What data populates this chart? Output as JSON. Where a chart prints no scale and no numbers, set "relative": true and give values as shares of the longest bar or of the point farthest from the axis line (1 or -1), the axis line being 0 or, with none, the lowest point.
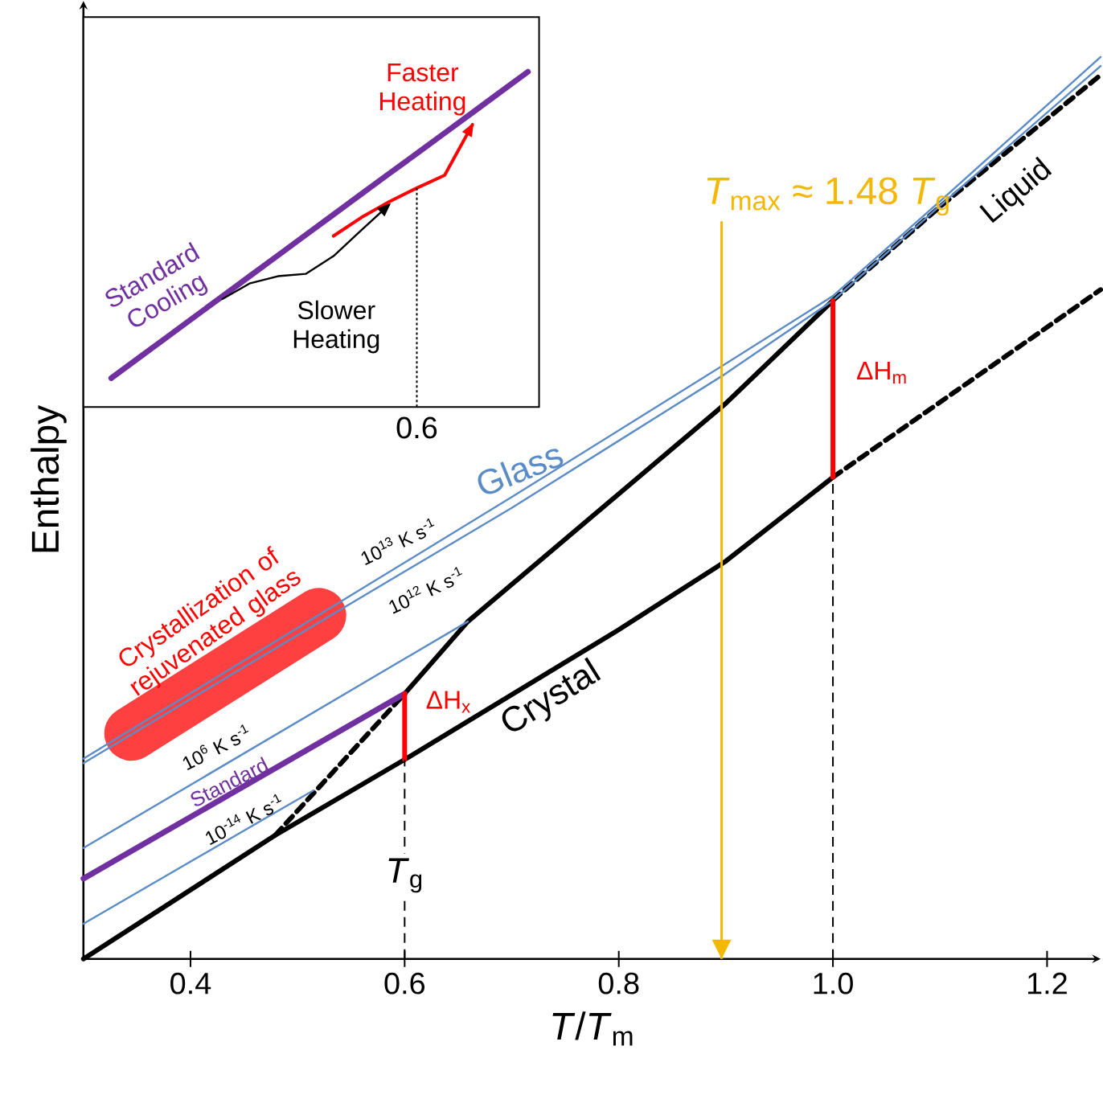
{
  "chart_data": [
    {
      "type": "line",
      "relative": true,
      "xlabel": "*T*/*T*$_{m}$",
      "ylabel": "Enthalpy",
      "xlim": [
        0.3,
        1.25
      ],
      "xticks": [
        0.4,
        0.6,
        0.8,
        {
          "value": 1.0,
          "label": "1.0"
        },
        1.2
      ],
      "tick_labels": "x",
      "series": [
        {
          "color": "#000000",
          "x": [
            0.3,
            0.479,
            0.6,
            0.8,
            0.9,
            1.0
          ],
          "values": [
            0.0,
            0.137,
            0.221,
            0.365,
            0.441,
            0.534
          ]
        },
        {
          "color": "#000000",
          "line_style": "dashed",
          "x": [
            1.0,
            1.25
          ],
          "values": [
            0.534,
            0.742
          ]
        },
        {
          "color": "#000000",
          "x": [
            0.6,
            0.659,
            0.9,
            1.0
          ],
          "values": [
            0.294,
            0.374,
            0.616,
            0.73
          ]
        },
        {
          "color": "#000000",
          "line_style": "dashed",
          "x": [
            1.0,
            1.1,
            1.25
          ],
          "values": [
            0.73,
            0.834,
            0.98
          ]
        },
        {
          "color": "#000000",
          "line_style": "dashed",
          "x": [
            0.479,
            0.6
          ],
          "values": [
            0.137,
            0.294
          ]
        },
        {
          "color": "#5b8cc8",
          "x": [
            0.3,
            0.5,
            0.7,
            0.9,
            1.0,
            1.1,
            1.25
          ],
          "values": [
            0.222,
            0.367,
            0.512,
            0.66,
            0.735,
            0.84,
            1.0
          ]
        },
        {
          "color": "#5b8cc8",
          "x": [
            0.3,
            0.5,
            0.7,
            0.9,
            1.0,
            1.1,
            1.25
          ],
          "values": [
            0.217,
            0.359,
            0.5,
            0.649,
            0.73,
            0.835,
            0.99
          ]
        },
        {
          "color": "#5b8cc8",
          "x": [
            0.3,
            0.659
          ],
          "values": [
            0.123,
            0.374
          ]
        },
        {
          "color": "#5b8cc8",
          "x": [
            0.3,
            0.515
          ],
          "values": [
            0.039,
            0.187
          ]
        },
        {
          "color": "#7030a0",
          "x": [
            0.3,
            0.6
          ],
          "values": [
            0.089,
            0.294
          ]
        },
        {
          "color": "#ff0000",
          "x": [
            0.6,
            0.6
          ],
          "values": [
            0.221,
            0.294
          ]
        },
        {
          "color": "#ff0000",
          "x": [
            1.0,
            1.0
          ],
          "values": [
            0.534,
            0.73
          ]
        }
      ],
      "ref_lines": [
        {
          "axis": "x",
          "value": 0.6,
          "label": "*T*$_{g}$",
          "line_style": "dashed"
        },
        {
          "axis": "x",
          "value": 1.0,
          "line_style": "dashed"
        },
        {
          "axis": "x",
          "value": 0.896,
          "label": "*T*$_{max}$ ≈ 1.48 *T*$_{g}$",
          "color": "#f5b800"
        }
      ],
      "annotations": [
        "Liquid",
        "Glass",
        "Crystal",
        "10$^{13}$ K s$^{-1}$",
        "10$^{12}$ K s$^{-1}$",
        "10$^{6}$ K s$^{-1}$",
        "Standard",
        "10$^{-14}$ K s$^{-1}$",
        "ΔH$_{x}$",
        "ΔH$_{m}$",
        "Crystallization of rejuvenated glass"
      ]
    },
    {
      "type": "line",
      "relative": true,
      "tick_labels": false,
      "categories": [
        null,
        null,
        null,
        null,
        null,
        null,
        null,
        null,
        null,
        null,
        null,
        null,
        null,
        null,
        null,
        null
      ],
      "series": [
        {
          "color": "#7030a0",
          "values": [
            0.086,
            0.147,
            0.208,
            0.269,
            0.33,
            0.391,
            0.452,
            0.513,
            0.574,
            0.635,
            0.696,
            0.756,
            0.817,
            0.878,
            0.939,
            1.0
          ]
        },
        {
          "color": "#000000",
          "values": [
            null,
            null,
            null,
            null,
            0.322,
            0.369,
            0.39,
            0.397,
            0.45,
            0.527,
            0.603,
            null,
            null,
            null,
            null,
            null
          ]
        },
        {
          "color": "#ff0000",
          "values": [
            null,
            null,
            null,
            null,
            null,
            null,
            null,
            null,
            0.51,
            0.565,
            0.612,
            0.653,
            0.691,
            0.842,
            null,
            null
          ]
        }
      ],
      "annotations": [
        "Faster Heating",
        "Standard Cooling",
        "Slower Heating",
        "0.6"
      ]
    }
  ]
}
